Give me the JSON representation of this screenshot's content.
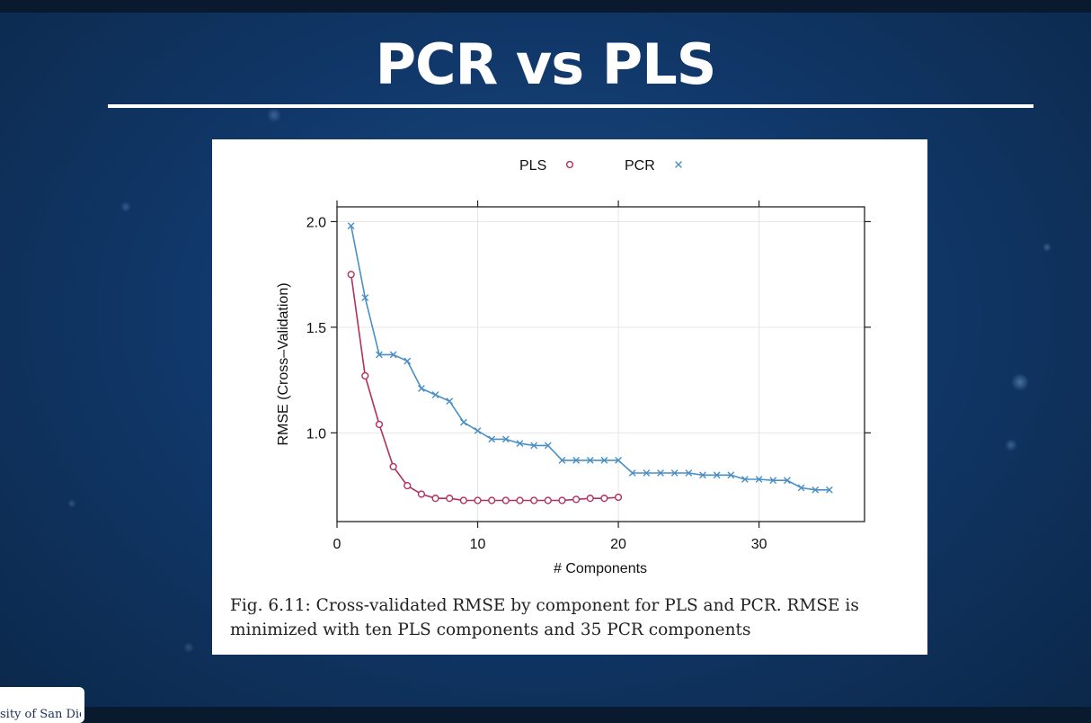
{
  "slide": {
    "title": "PCR vs PLS",
    "logo_text": "sity of San Diego"
  },
  "figure": {
    "caption": "Fig. 6.11: Cross-validated RMSE by component for PLS and PCR. RMSE is minimized with ten PLS components and 35 PCR components"
  },
  "chart_data": {
    "type": "line",
    "title": "",
    "xlabel": "# Components",
    "ylabel": "RMSE (Cross–Validation)",
    "xlim": [
      0,
      37.5
    ],
    "ylim": [
      0.58,
      2.07
    ],
    "xticks": [
      0,
      10,
      20,
      30
    ],
    "yticks": [
      1.0,
      1.5,
      2.0
    ],
    "xtick_labels": [
      "0",
      "10",
      "20",
      "30"
    ],
    "ytick_labels": [
      "1.0",
      "1.5",
      "2.0"
    ],
    "grid": true,
    "legend_position": "top",
    "series": [
      {
        "name": "PLS",
        "symbol": "o",
        "color": "#b03060",
        "x": [
          1,
          2,
          3,
          4,
          5,
          6,
          7,
          8,
          9,
          10,
          11,
          12,
          13,
          14,
          15,
          16,
          17,
          18,
          19,
          20
        ],
        "y": [
          1.75,
          1.27,
          1.04,
          0.84,
          0.75,
          0.71,
          0.69,
          0.69,
          0.68,
          0.68,
          0.68,
          0.68,
          0.68,
          0.68,
          0.68,
          0.68,
          0.685,
          0.69,
          0.69,
          0.695
        ]
      },
      {
        "name": "PCR",
        "symbol": "×",
        "color": "#4a8fc4",
        "x": [
          1,
          2,
          3,
          4,
          5,
          6,
          7,
          8,
          9,
          10,
          11,
          12,
          13,
          14,
          15,
          16,
          17,
          18,
          19,
          20,
          21,
          22,
          23,
          24,
          25,
          26,
          27,
          28,
          29,
          30,
          31,
          32,
          33,
          34,
          35
        ],
        "y": [
          1.98,
          1.64,
          1.37,
          1.37,
          1.34,
          1.21,
          1.18,
          1.15,
          1.05,
          1.01,
          0.97,
          0.97,
          0.95,
          0.94,
          0.94,
          0.87,
          0.87,
          0.87,
          0.87,
          0.87,
          0.81,
          0.81,
          0.81,
          0.81,
          0.81,
          0.8,
          0.8,
          0.8,
          0.78,
          0.78,
          0.775,
          0.775,
          0.74,
          0.73,
          0.73
        ]
      }
    ]
  }
}
